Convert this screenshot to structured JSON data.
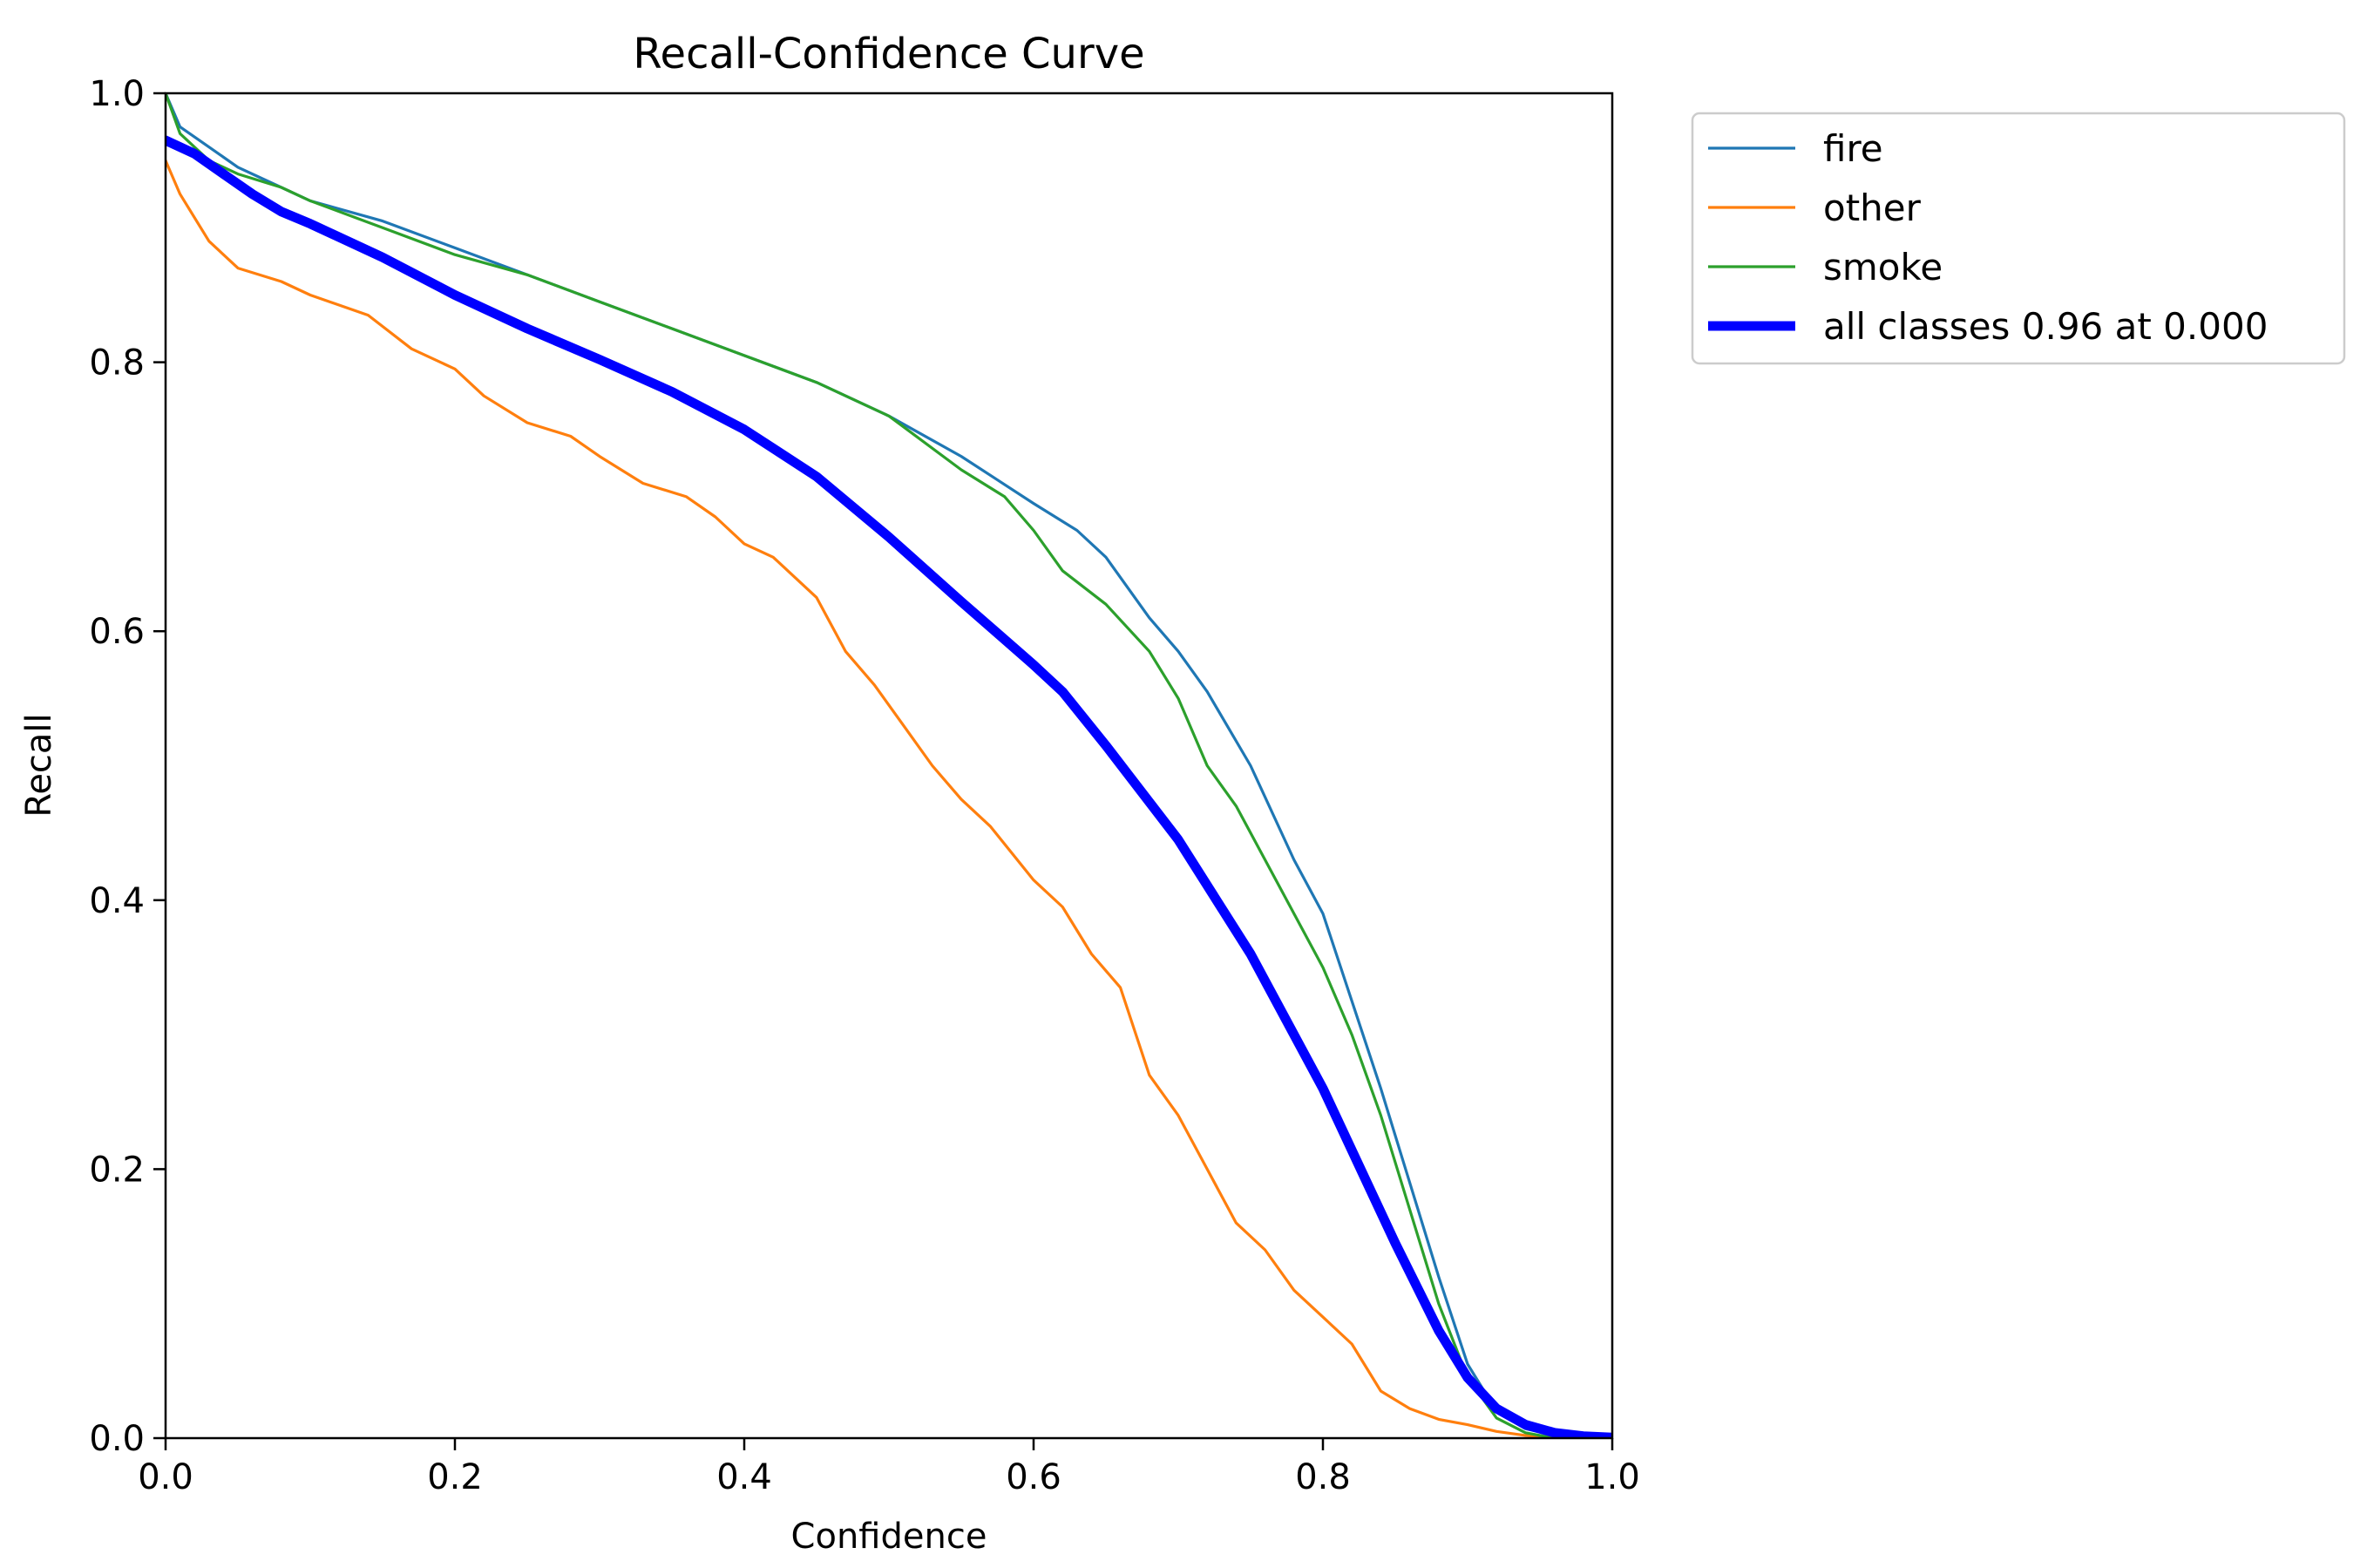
{
  "chart_data": {
    "type": "line",
    "title": "Recall-Confidence Curve",
    "xlabel": "Confidence",
    "ylabel": "Recall",
    "xlim": [
      0.0,
      1.0
    ],
    "ylim": [
      0.0,
      1.0
    ],
    "xticks": [
      "0.0",
      "0.2",
      "0.4",
      "0.6",
      "0.8",
      "1.0"
    ],
    "yticks": [
      "0.0",
      "0.2",
      "0.4",
      "0.6",
      "0.8",
      "1.0"
    ],
    "grid": false,
    "legend_position": "outside-top-right",
    "series": [
      {
        "name": "fire",
        "color": "#1f77b4",
        "x": [
          0.0,
          0.01,
          0.03,
          0.05,
          0.08,
          0.1,
          0.15,
          0.2,
          0.25,
          0.3,
          0.35,
          0.4,
          0.45,
          0.5,
          0.55,
          0.6,
          0.63,
          0.65,
          0.68,
          0.7,
          0.72,
          0.75,
          0.78,
          0.8,
          0.82,
          0.84,
          0.86,
          0.88,
          0.9,
          0.92,
          0.94,
          0.96,
          0.98,
          1.0
        ],
        "y": [
          1.0,
          0.975,
          0.96,
          0.945,
          0.93,
          0.92,
          0.905,
          0.885,
          0.865,
          0.845,
          0.825,
          0.805,
          0.785,
          0.76,
          0.73,
          0.695,
          0.675,
          0.655,
          0.61,
          0.585,
          0.555,
          0.5,
          0.43,
          0.39,
          0.325,
          0.26,
          0.19,
          0.12,
          0.055,
          0.02,
          0.007,
          0.002,
          0.0005,
          0.0
        ]
      },
      {
        "name": "other",
        "color": "#ff7f0e",
        "x": [
          0.0,
          0.01,
          0.03,
          0.05,
          0.08,
          0.1,
          0.14,
          0.17,
          0.2,
          0.22,
          0.25,
          0.28,
          0.3,
          0.33,
          0.36,
          0.38,
          0.4,
          0.42,
          0.45,
          0.47,
          0.49,
          0.51,
          0.53,
          0.55,
          0.57,
          0.6,
          0.62,
          0.64,
          0.66,
          0.68,
          0.7,
          0.72,
          0.74,
          0.76,
          0.78,
          0.8,
          0.82,
          0.84,
          0.86,
          0.88,
          0.9,
          0.92,
          0.94,
          0.96
        ],
        "y": [
          0.95,
          0.925,
          0.89,
          0.87,
          0.86,
          0.85,
          0.835,
          0.81,
          0.795,
          0.775,
          0.755,
          0.745,
          0.73,
          0.71,
          0.7,
          0.685,
          0.665,
          0.655,
          0.625,
          0.585,
          0.56,
          0.53,
          0.5,
          0.475,
          0.455,
          0.415,
          0.395,
          0.36,
          0.335,
          0.27,
          0.24,
          0.2,
          0.16,
          0.14,
          0.11,
          0.09,
          0.07,
          0.035,
          0.022,
          0.014,
          0.01,
          0.005,
          0.002,
          0.0
        ]
      },
      {
        "name": "smoke",
        "color": "#2ca02c",
        "x": [
          0.0,
          0.01,
          0.03,
          0.05,
          0.08,
          0.1,
          0.15,
          0.2,
          0.25,
          0.3,
          0.35,
          0.4,
          0.45,
          0.5,
          0.55,
          0.58,
          0.6,
          0.62,
          0.65,
          0.68,
          0.7,
          0.72,
          0.74,
          0.76,
          0.78,
          0.8,
          0.82,
          0.84,
          0.86,
          0.88,
          0.9,
          0.92,
          0.94,
          0.96
        ],
        "y": [
          1.0,
          0.97,
          0.95,
          0.94,
          0.93,
          0.92,
          0.9,
          0.88,
          0.865,
          0.845,
          0.825,
          0.805,
          0.785,
          0.76,
          0.72,
          0.7,
          0.675,
          0.645,
          0.62,
          0.585,
          0.55,
          0.5,
          0.47,
          0.43,
          0.39,
          0.35,
          0.3,
          0.24,
          0.17,
          0.1,
          0.045,
          0.015,
          0.004,
          0.0
        ]
      },
      {
        "name": "all classes 0.96 at 0.000",
        "color": "#0000ff",
        "thick": true,
        "x": [
          0.0,
          0.02,
          0.04,
          0.06,
          0.08,
          0.1,
          0.15,
          0.2,
          0.25,
          0.3,
          0.35,
          0.4,
          0.45,
          0.5,
          0.55,
          0.6,
          0.62,
          0.65,
          0.7,
          0.75,
          0.8,
          0.85,
          0.88,
          0.9,
          0.92,
          0.94,
          0.96,
          0.98,
          1.0
        ],
        "y": [
          0.965,
          0.955,
          0.94,
          0.925,
          0.912,
          0.903,
          0.878,
          0.85,
          0.825,
          0.802,
          0.778,
          0.75,
          0.715,
          0.67,
          0.622,
          0.575,
          0.555,
          0.515,
          0.445,
          0.36,
          0.26,
          0.145,
          0.08,
          0.045,
          0.022,
          0.01,
          0.004,
          0.0015,
          0.0005
        ]
      }
    ]
  }
}
